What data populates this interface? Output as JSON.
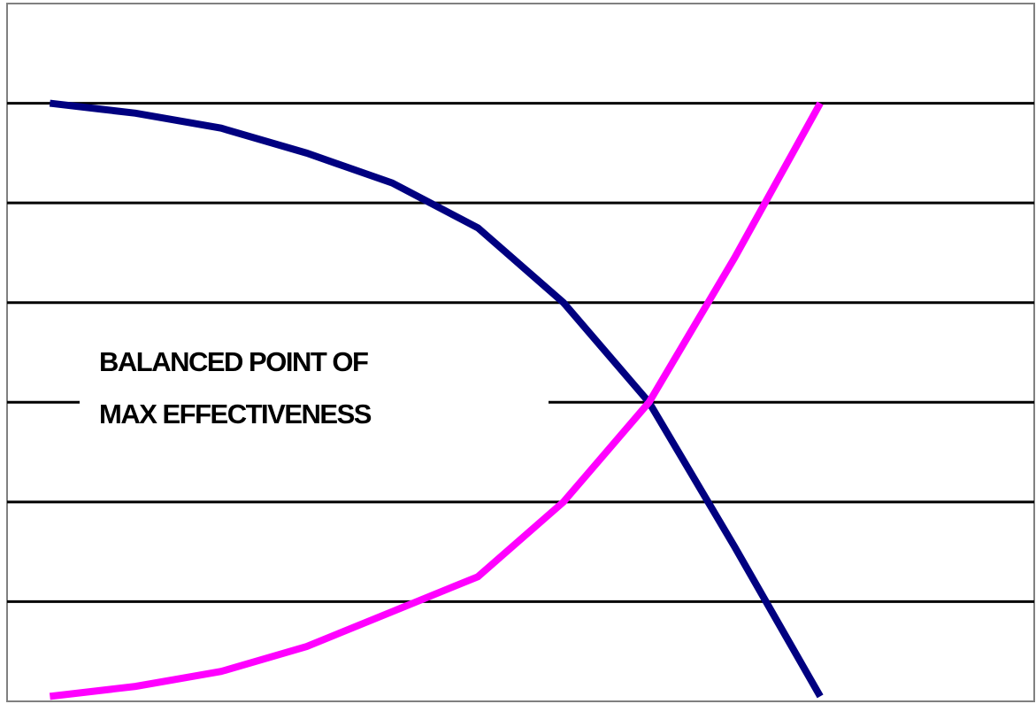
{
  "chart_data": {
    "type": "line",
    "x": [
      0,
      1,
      2,
      3,
      4,
      5,
      6,
      7,
      8,
      9
    ],
    "xlim": [
      -0.5,
      11.5
    ],
    "ylim": [
      0,
      7
    ],
    "yticks": [
      1,
      2,
      3,
      4,
      5,
      6
    ],
    "grid": true,
    "annotation": [
      "BALANCED POINT OF",
      "MAX EFFECTIVENESS"
    ],
    "series": [
      {
        "color": "#000080",
        "values": [
          6.0,
          5.9,
          5.75,
          5.5,
          5.2,
          4.75,
          4.0,
          3.0,
          1.55,
          0.05
        ]
      },
      {
        "color": "#ff00ff",
        "values": [
          0.05,
          0.15,
          0.3,
          0.55,
          0.9,
          1.25,
          2.0,
          3.0,
          4.45,
          6.0
        ]
      }
    ]
  }
}
